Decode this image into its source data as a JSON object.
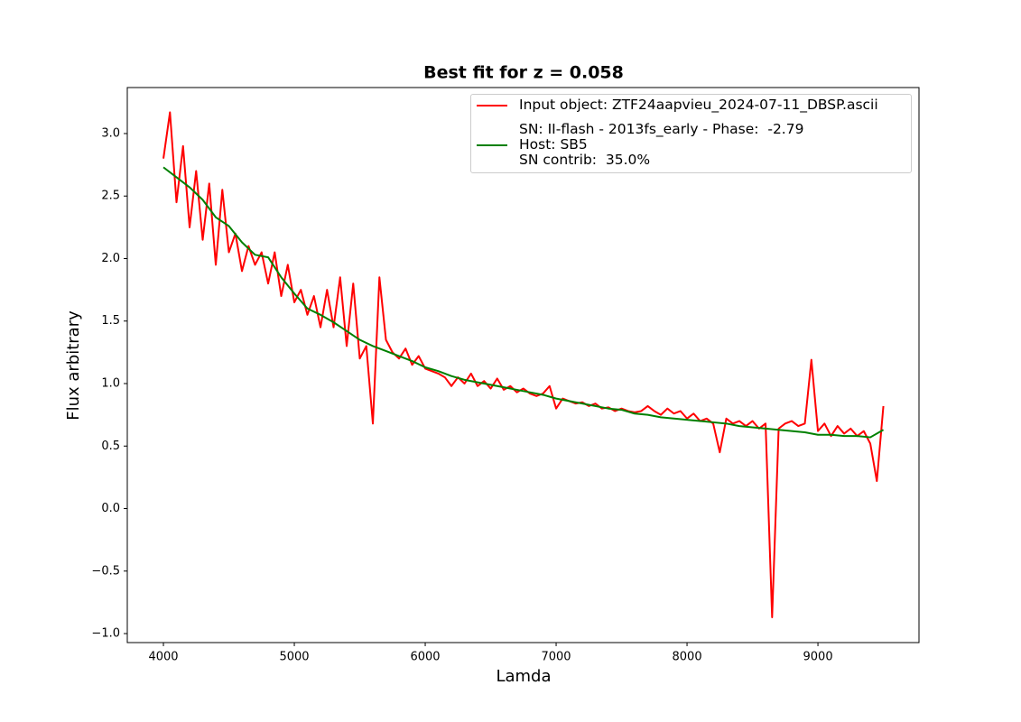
{
  "chart_data": {
    "type": "line",
    "title": "Best fit for z = 0.058",
    "x_label": "Lamda",
    "y_label": "Flux arbitrary",
    "xlim": [
      3724,
      9772
    ],
    "ylim": [
      -1.072,
      3.368
    ],
    "xticks": [
      4000,
      5000,
      6000,
      7000,
      8000,
      9000
    ],
    "yticks": [
      {
        "value": -1.0,
        "label": "−1.0"
      },
      {
        "value": -0.5,
        "label": "−0.5"
      },
      {
        "value": 0.0,
        "label": "0.0"
      },
      {
        "value": 0.5,
        "label": "0.5"
      },
      {
        "value": 1.0,
        "label": "1.0"
      },
      {
        "value": 1.5,
        "label": "1.5"
      },
      {
        "value": 2.0,
        "label": "2.0"
      },
      {
        "value": 2.5,
        "label": "2.5"
      },
      {
        "value": 3.0,
        "label": "3.0"
      }
    ],
    "legend": "upper right",
    "series": [
      {
        "name": "Input object: ZTF24aapvieu_2024-07-11_DBSP.ascii",
        "color": "#ff0000",
        "x": [
          4000,
          4050,
          4100,
          4150,
          4200,
          4250,
          4300,
          4350,
          4400,
          4450,
          4500,
          4550,
          4600,
          4650,
          4700,
          4750,
          4800,
          4850,
          4900,
          4950,
          5000,
          5050,
          5100,
          5150,
          5200,
          5250,
          5300,
          5350,
          5400,
          5450,
          5500,
          5550,
          5600,
          5650,
          5700,
          5750,
          5800,
          5850,
          5900,
          5950,
          6000,
          6050,
          6100,
          6150,
          6200,
          6250,
          6300,
          6350,
          6400,
          6450,
          6500,
          6550,
          6600,
          6650,
          6700,
          6750,
          6800,
          6850,
          6900,
          6950,
          7000,
          7050,
          7100,
          7150,
          7200,
          7250,
          7300,
          7350,
          7400,
          7450,
          7500,
          7550,
          7600,
          7650,
          7700,
          7750,
          7800,
          7850,
          7900,
          7950,
          8000,
          8050,
          8100,
          8150,
          8200,
          8250,
          8300,
          8350,
          8400,
          8450,
          8500,
          8550,
          8600,
          8650,
          8700,
          8750,
          8800,
          8850,
          8900,
          8950,
          9000,
          9050,
          9100,
          9150,
          9200,
          9250,
          9300,
          9350,
          9400,
          9450,
          9500
        ],
        "values": [
          2.8,
          3.17,
          2.45,
          2.9,
          2.25,
          2.7,
          2.15,
          2.6,
          1.95,
          2.55,
          2.05,
          2.2,
          1.9,
          2.1,
          1.95,
          2.05,
          1.8,
          2.05,
          1.7,
          1.95,
          1.65,
          1.75,
          1.55,
          1.7,
          1.45,
          1.75,
          1.45,
          1.85,
          1.3,
          1.8,
          1.2,
          1.3,
          0.68,
          1.85,
          1.35,
          1.25,
          1.2,
          1.28,
          1.15,
          1.22,
          1.12,
          1.1,
          1.08,
          1.05,
          0.98,
          1.05,
          1.0,
          1.08,
          0.98,
          1.02,
          0.96,
          1.04,
          0.95,
          0.98,
          0.93,
          0.96,
          0.92,
          0.9,
          0.92,
          0.98,
          0.8,
          0.88,
          0.86,
          0.84,
          0.85,
          0.82,
          0.84,
          0.8,
          0.81,
          0.78,
          0.8,
          0.78,
          0.77,
          0.78,
          0.82,
          0.78,
          0.75,
          0.8,
          0.76,
          0.78,
          0.72,
          0.76,
          0.7,
          0.72,
          0.68,
          0.45,
          0.72,
          0.68,
          0.7,
          0.66,
          0.7,
          0.64,
          0.68,
          -0.87,
          0.64,
          0.68,
          0.7,
          0.66,
          0.68,
          1.19,
          0.62,
          0.68,
          0.58,
          0.66,
          0.6,
          0.64,
          0.58,
          0.62,
          0.52,
          0.22,
          0.82
        ]
      },
      {
        "name": "SN: II-flash - 2013fs_early - Phase:  -2.79\nHost: SB5\nSN contrib:  35.0%",
        "color": "#008000",
        "x": [
          4000,
          4100,
          4200,
          4300,
          4400,
          4500,
          4600,
          4700,
          4800,
          4900,
          5000,
          5100,
          5200,
          5300,
          5400,
          5500,
          5600,
          5700,
          5800,
          5900,
          6000,
          6100,
          6200,
          6300,
          6400,
          6500,
          6600,
          6700,
          6800,
          6900,
          7000,
          7100,
          7200,
          7300,
          7400,
          7500,
          7600,
          7700,
          7800,
          7900,
          8000,
          8100,
          8200,
          8300,
          8400,
          8500,
          8600,
          8700,
          8800,
          8900,
          9000,
          9100,
          9200,
          9300,
          9400,
          9500
        ],
        "values": [
          2.73,
          2.65,
          2.57,
          2.47,
          2.33,
          2.26,
          2.13,
          2.03,
          2.01,
          1.85,
          1.72,
          1.6,
          1.55,
          1.49,
          1.42,
          1.35,
          1.3,
          1.26,
          1.22,
          1.18,
          1.13,
          1.1,
          1.06,
          1.03,
          1.01,
          0.99,
          0.97,
          0.95,
          0.93,
          0.91,
          0.88,
          0.86,
          0.84,
          0.82,
          0.8,
          0.79,
          0.76,
          0.75,
          0.73,
          0.72,
          0.71,
          0.7,
          0.69,
          0.68,
          0.66,
          0.65,
          0.64,
          0.63,
          0.62,
          0.61,
          0.59,
          0.59,
          0.58,
          0.58,
          0.57,
          0.63
        ]
      }
    ]
  }
}
